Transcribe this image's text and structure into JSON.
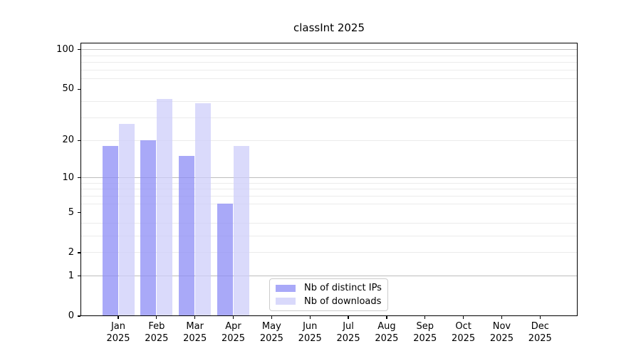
{
  "title": "classInt 2025",
  "legend": {
    "items": [
      {
        "label": "Nb of distinct IPs",
        "key": "ips"
      },
      {
        "label": "Nb of downloads",
        "key": "downloads"
      }
    ]
  },
  "colors": {
    "ips_bar": "rgba(140,140,246,0.75)",
    "downloads_bar": "rgba(206,206,250,0.75)",
    "ips_solid": "#a9a9f8",
    "downloads_solid": "#d9d9fb",
    "grid_major": "#bdbdbd",
    "grid_minor": "#ebebeb",
    "axis": "#000000",
    "background": "#ffffff"
  },
  "chart_data": {
    "type": "bar",
    "title": "classInt 2025",
    "categories": [
      "Jan",
      "Feb",
      "Mar",
      "Apr",
      "May",
      "Jun",
      "Jul",
      "Aug",
      "Sep",
      "Oct",
      "Nov",
      "Dec"
    ],
    "category_year": "2025",
    "series": [
      {
        "name": "Nb of distinct IPs",
        "key": "ips",
        "values": [
          18,
          20,
          15,
          6,
          0,
          0,
          0,
          0,
          0,
          0,
          0,
          0
        ]
      },
      {
        "name": "Nb of downloads",
        "key": "downloads",
        "values": [
          27,
          42,
          39,
          18,
          0,
          0,
          0,
          0,
          0,
          0,
          0,
          0
        ]
      }
    ],
    "xlabel": "",
    "ylabel": "",
    "yscale": "log1p",
    "ylim": [
      0,
      113
    ],
    "ytick_values": [
      0,
      1,
      2,
      5,
      10,
      20,
      50,
      100
    ],
    "grid_major_values": [
      1,
      10,
      100
    ],
    "grid_minor_values": [
      2,
      3,
      4,
      6,
      7,
      8,
      9,
      20,
      30,
      40,
      60,
      70,
      80,
      90
    ],
    "grid": "horizontal",
    "legend_position": "lower center"
  }
}
